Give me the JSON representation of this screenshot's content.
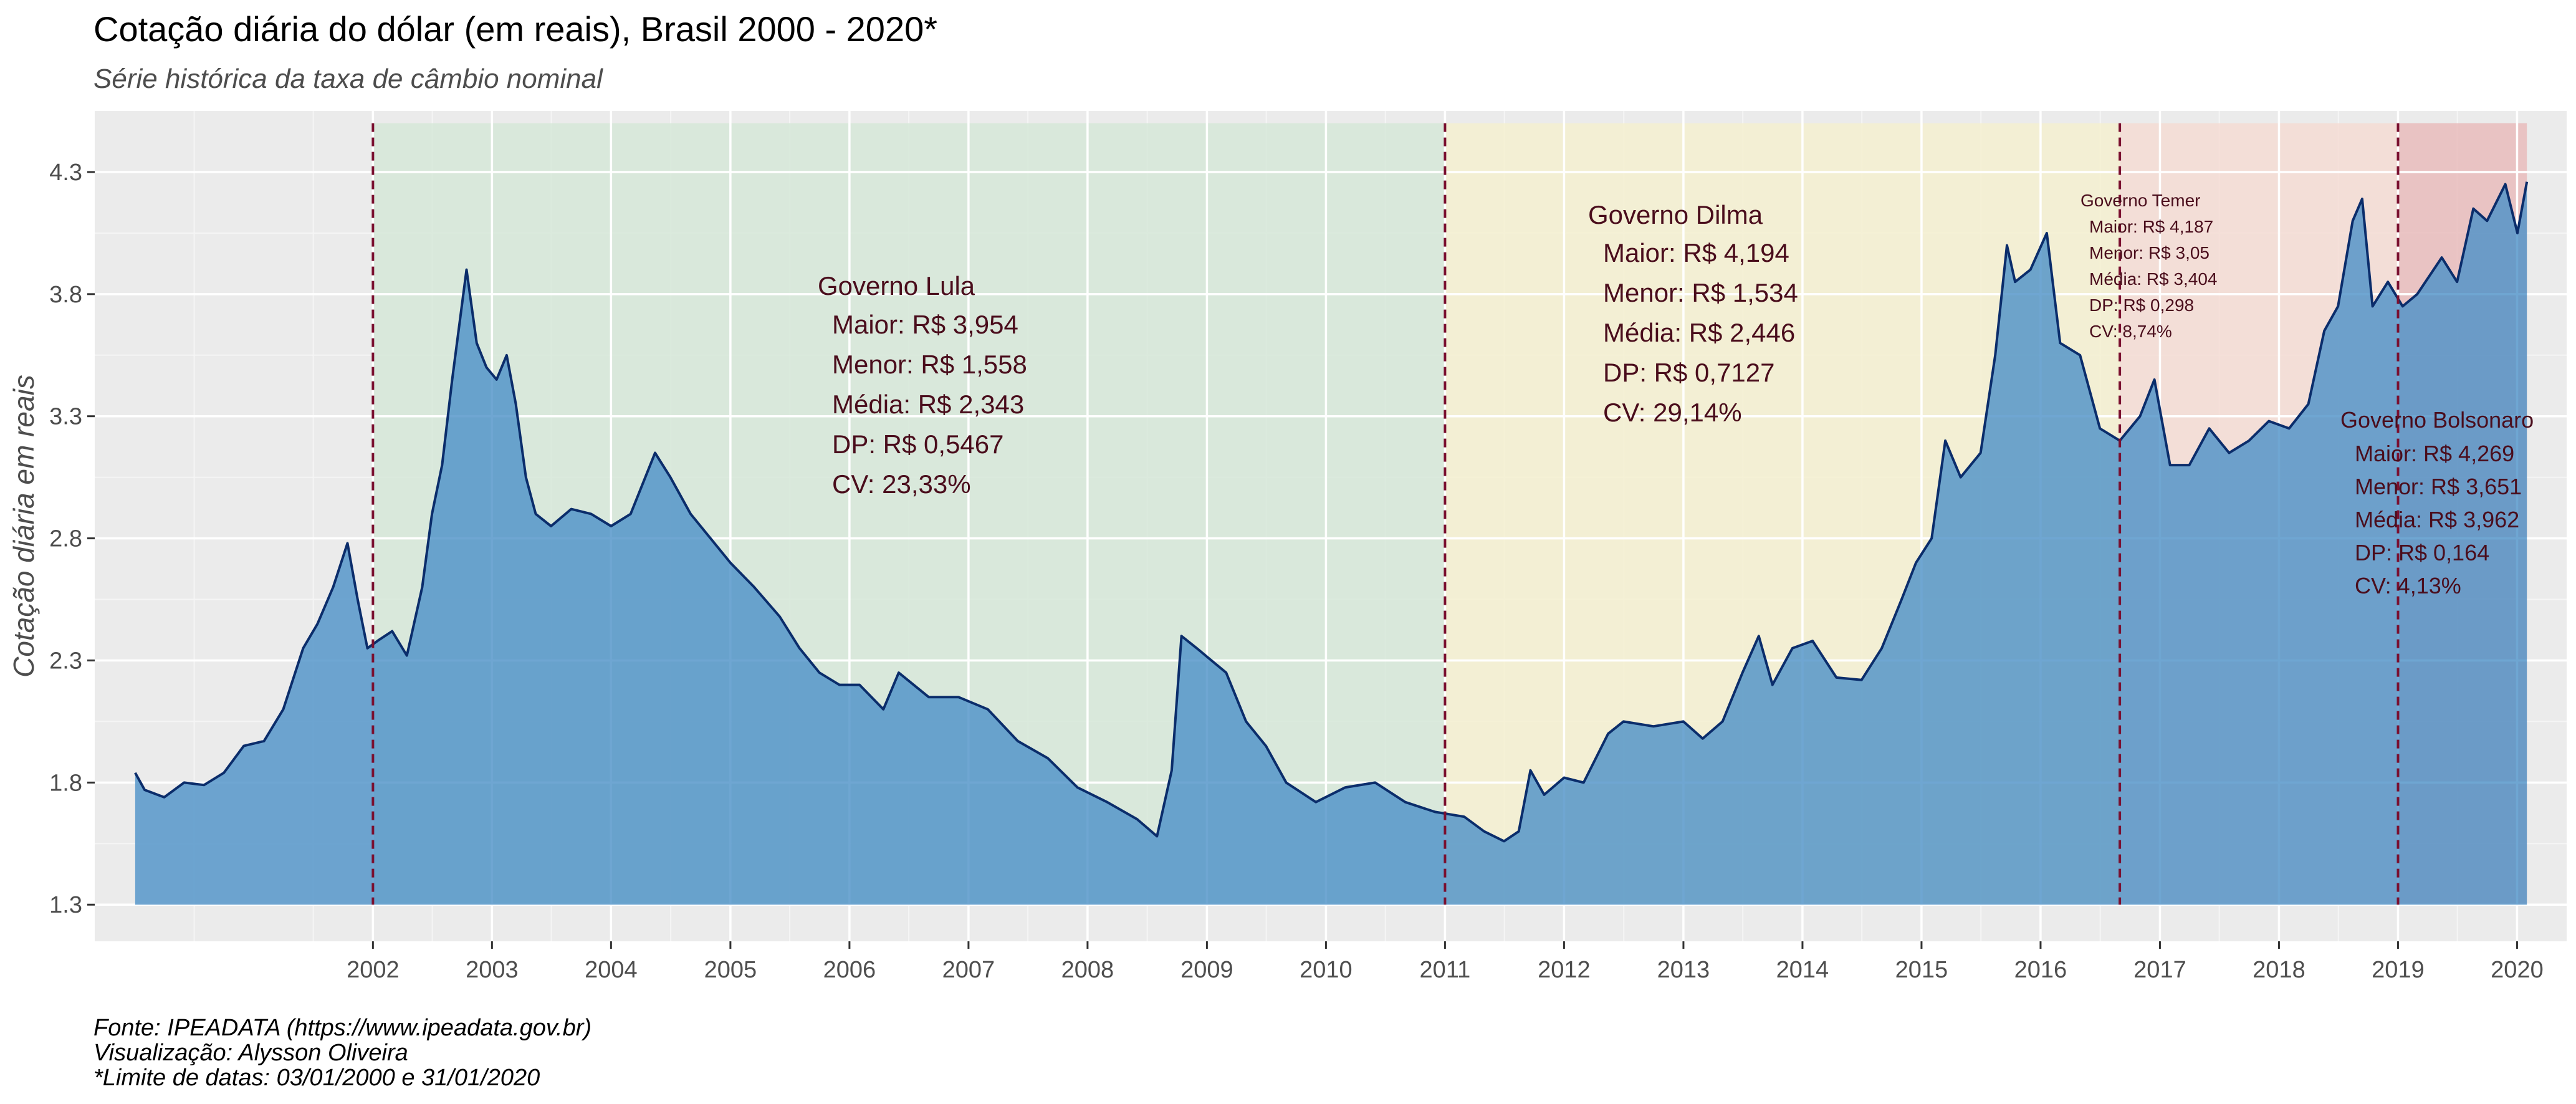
{
  "title": "Cotação diária do dólar (em reais), Brasil 2000 - 2020*",
  "subtitle": "Série histórica da taxa de câmbio nominal",
  "captions": [
    "Fonte: IPEADATA (https://www.ipeadata.gov.br)",
    "Visualização: Alysson Oliveira",
    "*Limite de datas: 03/01/2000 e 31/01/2020"
  ],
  "chart_data": {
    "type": "area",
    "title": "Cotação diária do dólar (em reais), Brasil 2000 - 2020*",
    "subtitle": "Série histórica da taxa de câmbio nominal",
    "xlabel": "",
    "ylabel": "Cotação diária em reais",
    "xlim": [
      "2000-01-03",
      "2020-01-31"
    ],
    "ylim": [
      1.3,
      4.3
    ],
    "y_ticks": [
      1.3,
      1.8,
      2.3,
      2.8,
      3.3,
      3.8,
      4.3
    ],
    "x_ticks": [
      "2002",
      "2003",
      "2004",
      "2005",
      "2006",
      "2007",
      "2008",
      "2009",
      "2010",
      "2011",
      "2012",
      "2013",
      "2014",
      "2015",
      "2016",
      "2017",
      "2018",
      "2019",
      "2020"
    ],
    "grid": true,
    "colors": {
      "area_fill": "#4f93c8",
      "line": "#0b2d6b",
      "panel_bg": "#ebebeb",
      "vline": "#7a1030",
      "lula_band": "#d6e8d8",
      "dilma_band": "#f4f0d0",
      "temer_band": "#f4dcd4",
      "bolsonaro_band": "#e9bcbc"
    },
    "periods": [
      {
        "label": "Governo Lula",
        "start": "2002-01-01",
        "end": "2010-12-31",
        "color": "#d6e8d8",
        "stats": [
          "Maior: R$ 3,954",
          "Menor: R$ 1,558",
          "Média: R$ 2,343",
          "DP: R$ 0,5467",
          "CV: 23,33%"
        ]
      },
      {
        "label": "Governo Dilma",
        "start": "2011-01-01",
        "end": "2016-08-31",
        "color": "#f4f0d0",
        "stats": [
          "Maior: R$ 4,194",
          "Menor: R$ 1,534",
          "Média: R$ 2,446",
          "DP: R$ 0,7127",
          "CV: 29,14%"
        ]
      },
      {
        "label": "Governo Temer",
        "start": "2016-08-31",
        "end": "2018-12-31",
        "color": "#f4dcd4",
        "stats": [
          "Maior: R$ 4,187",
          "Menor: R$ 3,05",
          "Média: R$ 3,404",
          "DP: R$ 0,298",
          "CV: 8,74%"
        ]
      },
      {
        "label": "Governo Bolsonaro",
        "start": "2019-01-01",
        "end": "2020-01-31",
        "color": "#e9bcbc",
        "stats": [
          "Maior: R$  4,269",
          "Menor: R$ 3,651",
          "Média: R$ 3,962",
          "DP: R$ 0,164",
          "CV: 4,13%"
        ]
      }
    ],
    "vlines": [
      "2002-01-01",
      "2011-01-01",
      "2016-08-31",
      "2019-01-01"
    ],
    "series": [
      {
        "x": [
          "2000-01-03",
          "2000-02-01",
          "2000-04-01",
          "2000-06-01",
          "2000-08-01",
          "2000-10-01",
          "2000-12-01",
          "2001-02-01",
          "2001-04-01",
          "2001-06-01",
          "2001-07-15",
          "2001-09-01",
          "2001-10-15",
          "2001-11-15",
          "2001-12-15",
          "2002-01-15",
          "2002-03-01",
          "2002-04-15",
          "2002-06-01",
          "2002-07-01",
          "2002-08-01",
          "2002-09-01",
          "2002-10-15",
          "2002-11-15",
          "2002-12-15",
          "2003-01-15",
          "2003-02-15",
          "2003-03-15",
          "2003-04-15",
          "2003-05-15",
          "2003-07-01",
          "2003-09-01",
          "2003-11-01",
          "2004-01-01",
          "2004-03-01",
          "2004-05-15",
          "2004-07-01",
          "2004-09-01",
          "2004-11-01",
          "2005-01-01",
          "2005-03-15",
          "2005-06-01",
          "2005-08-01",
          "2005-10-01",
          "2005-12-01",
          "2006-02-01",
          "2006-04-15",
          "2006-06-01",
          "2006-09-01",
          "2006-12-01",
          "2007-03-01",
          "2007-06-01",
          "2007-09-01",
          "2007-12-01",
          "2008-03-01",
          "2008-06-01",
          "2008-08-01",
          "2008-09-15",
          "2008-10-15",
          "2008-12-01",
          "2009-01-15",
          "2009-03-01",
          "2009-05-01",
          "2009-07-01",
          "2009-09-01",
          "2009-12-01",
          "2010-03-01",
          "2010-06-01",
          "2010-09-01",
          "2010-12-01",
          "2011-03-01",
          "2011-05-01",
          "2011-07-01",
          "2011-08-15",
          "2011-09-20",
          "2011-11-01",
          "2012-01-01",
          "2012-03-01",
          "2012-05-15",
          "2012-07-01",
          "2012-10-01",
          "2013-01-01",
          "2013-03-01",
          "2013-05-01",
          "2013-07-01",
          "2013-08-20",
          "2013-10-01",
          "2013-12-01",
          "2014-02-01",
          "2014-04-15",
          "2014-07-01",
          "2014-09-01",
          "2014-11-01",
          "2014-12-15",
          "2015-02-01",
          "2015-03-15",
          "2015-05-01",
          "2015-07-01",
          "2015-08-15",
          "2015-09-20",
          "2015-10-15",
          "2015-12-01",
          "2016-01-20",
          "2016-03-01",
          "2016-05-01",
          "2016-07-01",
          "2016-08-31",
          "2016-11-01",
          "2016-12-15",
          "2017-02-01",
          "2017-04-01",
          "2017-06-01",
          "2017-08-01",
          "2017-10-01",
          "2017-12-01",
          "2018-02-01",
          "2018-04-01",
          "2018-05-20",
          "2018-07-01",
          "2018-08-15",
          "2018-09-13",
          "2018-10-15",
          "2018-12-01",
          "2019-01-15",
          "2019-03-01",
          "2019-05-15",
          "2019-07-01",
          "2019-08-20",
          "2019-10-01",
          "2019-11-26",
          "2020-01-02",
          "2020-01-31"
        ],
        "values": [
          1.84,
          1.77,
          1.74,
          1.8,
          1.79,
          1.84,
          1.95,
          1.97,
          2.1,
          2.35,
          2.45,
          2.6,
          2.78,
          2.55,
          2.35,
          2.38,
          2.42,
          2.32,
          2.6,
          2.9,
          3.1,
          3.45,
          3.9,
          3.6,
          3.5,
          3.45,
          3.55,
          3.35,
          3.05,
          2.9,
          2.85,
          2.92,
          2.9,
          2.85,
          2.9,
          3.15,
          3.05,
          2.9,
          2.8,
          2.7,
          2.6,
          2.48,
          2.35,
          2.25,
          2.2,
          2.2,
          2.1,
          2.25,
          2.15,
          2.15,
          2.1,
          1.97,
          1.9,
          1.78,
          1.72,
          1.65,
          1.58,
          1.85,
          2.4,
          2.35,
          2.3,
          2.25,
          2.05,
          1.95,
          1.8,
          1.72,
          1.78,
          1.8,
          1.72,
          1.68,
          1.66,
          1.6,
          1.56,
          1.6,
          1.85,
          1.75,
          1.82,
          1.8,
          2.0,
          2.05,
          2.03,
          2.05,
          1.98,
          2.05,
          2.25,
          2.4,
          2.2,
          2.35,
          2.38,
          2.23,
          2.22,
          2.35,
          2.55,
          2.7,
          2.8,
          3.2,
          3.05,
          3.15,
          3.55,
          4.0,
          3.85,
          3.9,
          4.05,
          3.6,
          3.55,
          3.25,
          3.2,
          3.3,
          3.45,
          3.1,
          3.1,
          3.25,
          3.15,
          3.2,
          3.28,
          3.25,
          3.35,
          3.65,
          3.75,
          4.1,
          4.19,
          3.75,
          3.85,
          3.75,
          3.8,
          3.95,
          3.85,
          4.15,
          4.1,
          4.25,
          4.05,
          4.26
        ]
      }
    ]
  }
}
